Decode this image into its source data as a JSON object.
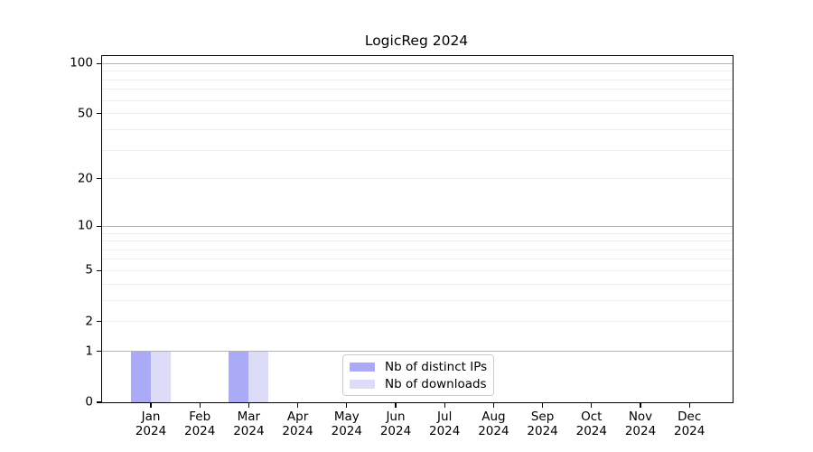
{
  "title": "LogicReg 2024",
  "colors": {
    "distinct_ips": "#aaaaf7",
    "downloads": "#dcdcf8",
    "grid_major": "#b3b3b3",
    "grid_minor": "#ededed",
    "axis": "#000000",
    "legend_border": "#cccccc",
    "background": "#ffffff"
  },
  "y_axis": {
    "tick_labels": [
      "100",
      "50",
      "20",
      "10",
      "5",
      "2",
      "1",
      "0"
    ],
    "tick_values": [
      100,
      50,
      20,
      10,
      5,
      2,
      1,
      0
    ],
    "major_gridlines": [
      1,
      10,
      100
    ],
    "minor_gridlines": [
      2,
      3,
      4,
      5,
      6,
      7,
      8,
      9,
      20,
      30,
      40,
      50,
      60,
      70,
      80,
      90
    ],
    "scale": "log10(1+x)"
  },
  "x_axis": {
    "months": [
      "Jan",
      "Feb",
      "Mar",
      "Apr",
      "May",
      "Jun",
      "Jul",
      "Aug",
      "Sep",
      "Oct",
      "Nov",
      "Dec"
    ],
    "year": "2024"
  },
  "legend": {
    "items": [
      {
        "label": "Nb of distinct IPs",
        "color_key": "distinct_ips"
      },
      {
        "label": "Nb of downloads",
        "color_key": "downloads"
      }
    ]
  },
  "chart_data": {
    "type": "bar",
    "title": "LogicReg 2024",
    "categories": [
      "Jan 2024",
      "Feb 2024",
      "Mar 2024",
      "Apr 2024",
      "May 2024",
      "Jun 2024",
      "Jul 2024",
      "Aug 2024",
      "Sep 2024",
      "Oct 2024",
      "Nov 2024",
      "Dec 2024"
    ],
    "series": [
      {
        "name": "Nb of distinct IPs",
        "color": "#aaaaf7",
        "values": [
          1,
          0,
          1,
          0,
          0,
          0,
          0,
          0,
          0,
          0,
          0,
          0
        ]
      },
      {
        "name": "Nb of downloads",
        "color": "#dcdcf8",
        "values": [
          1,
          0,
          1,
          0,
          0,
          0,
          0,
          0,
          0,
          0,
          0,
          0
        ]
      }
    ],
    "y_scale": "log10(1+x)",
    "y_ticks": [
      0,
      1,
      2,
      5,
      10,
      20,
      50,
      100
    ],
    "ylim": [
      0,
      111
    ],
    "grid": "horizontal",
    "legend_position": "inside-bottom-center"
  }
}
